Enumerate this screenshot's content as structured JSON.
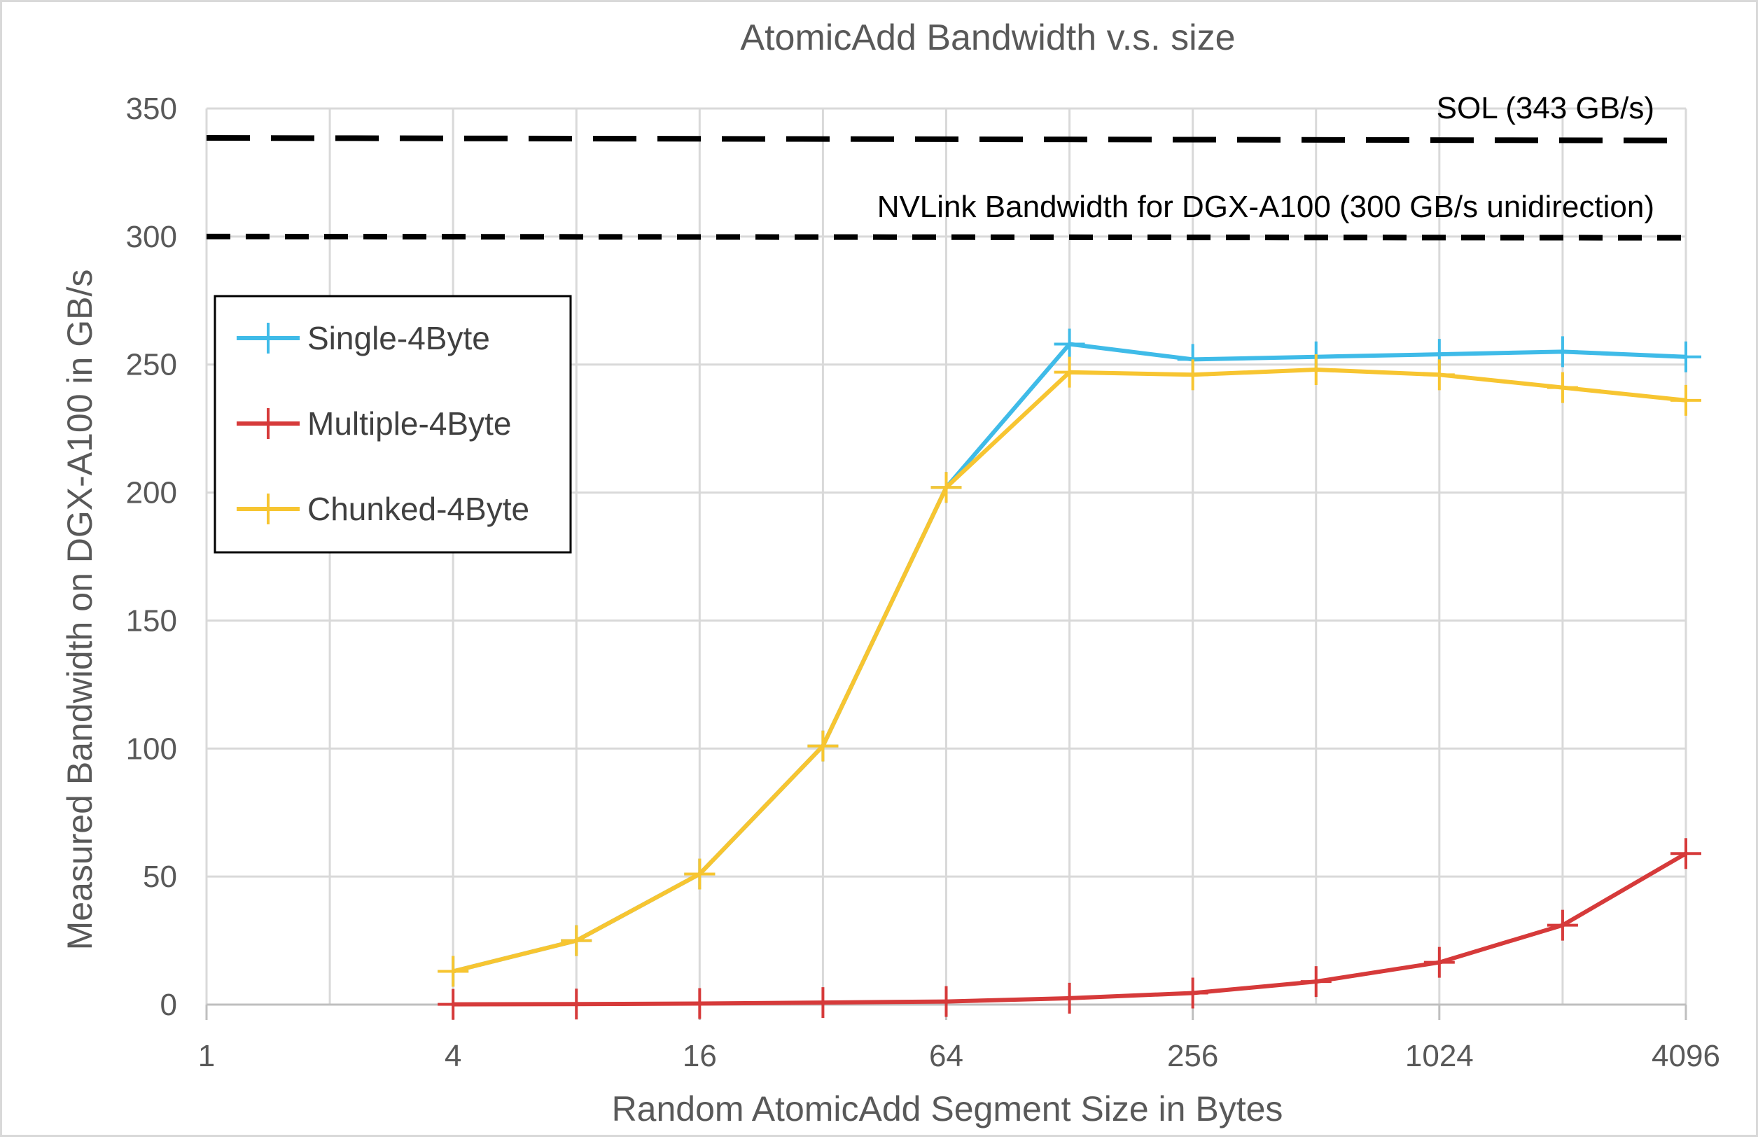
{
  "chart_data": {
    "type": "line",
    "title": "AtomicAdd Bandwidth v.s. size",
    "xlabel": "Random AtomicAdd Segment Size in Bytes",
    "ylabel": "Measured Bandwidth on DGX-A100 in GB/s",
    "x_scale": "log2",
    "x_ticks": [
      1,
      4,
      16,
      64,
      256,
      1024,
      4096
    ],
    "xlim": [
      1,
      4096
    ],
    "y_ticks": [
      0,
      50,
      100,
      150,
      200,
      250,
      300,
      350
    ],
    "ylim": [
      0,
      350
    ],
    "grid": true,
    "legend_position": "left",
    "x": [
      4,
      8,
      16,
      32,
      64,
      128,
      256,
      512,
      1024,
      2048,
      4096
    ],
    "series": [
      {
        "name": "Single-4Byte",
        "color": "#3fbbe8",
        "values": [
          13,
          25,
          51,
          101,
          202,
          258,
          252,
          253,
          254,
          255,
          253
        ]
      },
      {
        "name": "Multiple-4Byte",
        "color": "#d63a3a",
        "values": [
          0.1,
          0.2,
          0.4,
          0.8,
          1.2,
          2.5,
          4.5,
          9,
          16.5,
          31,
          59
        ]
      },
      {
        "name": "Chunked-4Byte",
        "color": "#f7c531",
        "values": [
          13,
          25,
          51,
          101,
          202,
          247,
          246,
          248,
          246,
          241,
          236
        ]
      }
    ],
    "reference_lines": [
      {
        "label": "SOL (343 GB/s)",
        "y_start": 338.5,
        "y_end": 337.5,
        "style": "long-dash"
      },
      {
        "label": "NVLink Bandwidth for DGX-A100 (300 GB/s unidirection)",
        "y_start": 300,
        "y_end": 299.5,
        "style": "short-dash"
      }
    ]
  }
}
